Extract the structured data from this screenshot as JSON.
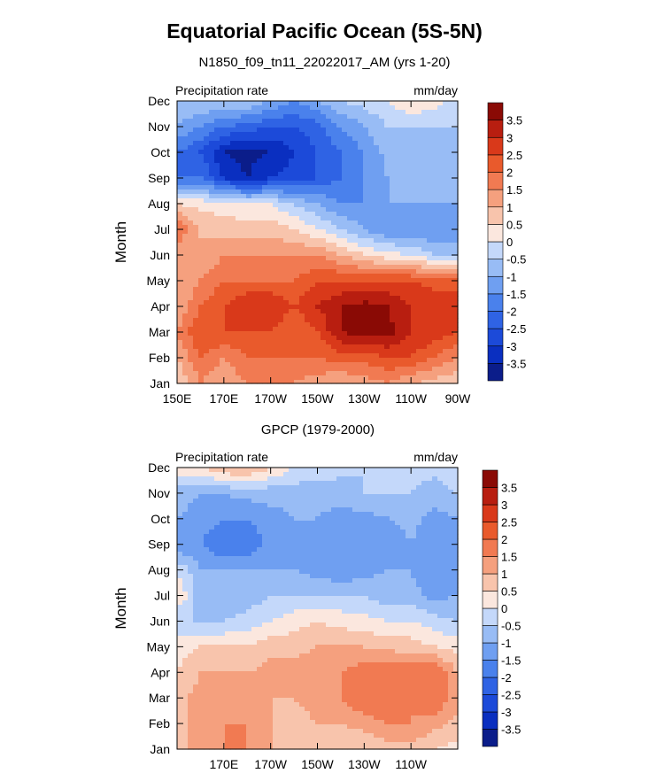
{
  "title": "Equatorial Pacific Ocean (5S-5N)",
  "subtitle": "N1850_f09_tn11_22022017_AM (yrs 1-20)",
  "colors": {
    "levels": [
      "#0b1d8a",
      "#0a2fc0",
      "#1c4ad9",
      "#2f63e4",
      "#4a81ec",
      "#6f9ff1",
      "#98bcf5",
      "#c4d8fa",
      "#fbe7de",
      "#f8c4ac",
      "#f5a07e",
      "#f17a52",
      "#e95a2c",
      "#d9391a",
      "#b81e10",
      "#8a0a05"
    ]
  },
  "chart_data": [
    {
      "type": "heatmap",
      "name_left": "Precipitation rate",
      "units": "mm/day",
      "ylabel": "Month",
      "months": [
        "Jan",
        "Feb",
        "Mar",
        "Apr",
        "May",
        "Jun",
        "Jul",
        "Aug",
        "Sep",
        "Oct",
        "Nov",
        "Dec"
      ],
      "xlim": [
        150,
        270
      ],
      "x_ticks": [
        {
          "v": 150,
          "label": "150E"
        },
        {
          "v": 170,
          "label": "170E"
        },
        {
          "v": 190,
          "label": "170W"
        },
        {
          "v": 210,
          "label": "150W"
        },
        {
          "v": 230,
          "label": "130W"
        },
        {
          "v": 250,
          "label": "110W"
        },
        {
          "v": 270,
          "label": "90W"
        }
      ],
      "colorbar_labels": [
        "-3.5",
        "-3",
        "-2.5",
        "-2",
        "-1.5",
        "-1",
        "-0.5",
        "0",
        "0.5",
        "1",
        "1.5",
        "2",
        "2.5",
        "3",
        "3.5"
      ],
      "x": [
        150,
        160,
        170,
        180,
        190,
        200,
        210,
        220,
        230,
        240,
        250,
        260,
        270
      ],
      "z": [
        [
          0.5,
          1.5,
          1.0,
          1.5,
          1.5,
          1.5,
          1.2,
          1.0,
          1.2,
          1.5,
          1.0,
          0.8,
          0.5
        ],
        [
          1.0,
          2.0,
          1.5,
          2.0,
          2.0,
          2.0,
          2.0,
          2.2,
          2.2,
          2.5,
          2.5,
          2.0,
          1.5
        ],
        [
          1.5,
          2.5,
          2.5,
          2.5,
          2.5,
          2.0,
          2.5,
          3.5,
          3.7,
          3.7,
          3.0,
          2.8,
          2.5
        ],
        [
          1.0,
          2.0,
          2.5,
          3.0,
          3.0,
          2.5,
          3.0,
          3.5,
          3.7,
          3.5,
          3.0,
          2.8,
          2.5
        ],
        [
          1.0,
          1.5,
          2.0,
          2.0,
          2.0,
          2.0,
          2.5,
          2.5,
          2.5,
          2.5,
          2.5,
          2.3,
          2.5
        ],
        [
          1.0,
          1.0,
          1.5,
          1.5,
          1.5,
          1.5,
          1.5,
          1.0,
          0.5,
          0.2,
          0.0,
          -0.5,
          -0.5
        ],
        [
          2.0,
          1.0,
          0.8,
          0.8,
          0.8,
          0.5,
          0.0,
          -0.5,
          -1.0,
          -1.5,
          -1.5,
          -1.5,
          -1.5
        ],
        [
          0.5,
          0.3,
          0.2,
          0.0,
          0.0,
          -0.5,
          -1.0,
          -1.5,
          -1.5,
          -1.0,
          -1.0,
          -1.0,
          -1.0
        ],
        [
          -2.0,
          -2.0,
          -3.0,
          -3.5,
          -3.0,
          -2.8,
          -2.5,
          -2.0,
          -1.5,
          -1.0,
          -1.0,
          -1.0,
          -1.0
        ],
        [
          -2.0,
          -2.5,
          -3.5,
          -3.7,
          -3.5,
          -3.0,
          -2.5,
          -2.0,
          -1.5,
          -0.8,
          -0.5,
          -0.8,
          -1.0
        ],
        [
          -1.0,
          -1.5,
          -2.0,
          -2.2,
          -2.5,
          -2.5,
          -2.2,
          -1.5,
          -1.0,
          -0.5,
          -0.5,
          -0.5,
          -0.5
        ],
        [
          -0.5,
          -0.5,
          -0.5,
          -0.5,
          -1.0,
          -1.5,
          -1.0,
          -0.5,
          -0.3,
          0.0,
          0.5,
          0.2,
          -0.2
        ]
      ]
    },
    {
      "type": "heatmap",
      "title": "GPCP (1979-2000)",
      "name_left": "Precipitation rate",
      "units": "mm/day",
      "ylabel": "Month",
      "months": [
        "Jan",
        "Feb",
        "Mar",
        "Apr",
        "May",
        "Jun",
        "Jul",
        "Aug",
        "Sep",
        "Oct",
        "Nov",
        "Dec"
      ],
      "xlim": [
        150,
        270
      ],
      "x_ticks": [
        {
          "v": 170,
          "label": "170E"
        },
        {
          "v": 190,
          "label": "170W"
        },
        {
          "v": 210,
          "label": "150W"
        },
        {
          "v": 230,
          "label": "130W"
        },
        {
          "v": 250,
          "label": "110W"
        }
      ],
      "colorbar_labels": [
        "-3.5",
        "-3",
        "-2.5",
        "-2",
        "-1.5",
        "-1",
        "-0.5",
        "0",
        "0.5",
        "1",
        "1.5",
        "2",
        "2.5",
        "3",
        "3.5"
      ],
      "x": [
        150,
        160,
        170,
        180,
        190,
        200,
        210,
        220,
        230,
        240,
        250,
        260,
        270
      ],
      "z": [
        [
          0.8,
          1.2,
          1.5,
          1.5,
          1.0,
          0.5,
          0.5,
          0.5,
          0.5,
          0.8,
          0.8,
          0.5,
          0.3
        ],
        [
          0.8,
          1.2,
          1.5,
          1.5,
          1.0,
          0.8,
          1.0,
          1.0,
          1.2,
          1.5,
          1.5,
          1.2,
          0.8
        ],
        [
          0.8,
          1.2,
          1.5,
          1.2,
          1.0,
          1.0,
          1.2,
          1.5,
          2.0,
          2.0,
          1.5,
          2.0,
          1.2
        ],
        [
          0.5,
          1.0,
          1.0,
          1.0,
          1.2,
          1.2,
          1.5,
          1.5,
          1.8,
          2.0,
          1.8,
          2.0,
          1.0
        ],
        [
          0.3,
          0.5,
          0.5,
          0.5,
          0.8,
          0.8,
          1.0,
          1.0,
          1.0,
          0.8,
          0.8,
          0.5,
          0.3
        ],
        [
          -0.5,
          -0.5,
          -0.5,
          -0.3,
          0.0,
          0.3,
          0.5,
          0.3,
          0.2,
          0.0,
          0.0,
          -0.3,
          -0.5
        ],
        [
          0.5,
          -0.8,
          -1.0,
          -0.8,
          -0.5,
          -0.5,
          -0.5,
          -0.5,
          -0.5,
          -0.8,
          -0.8,
          -1.2,
          -1.0
        ],
        [
          0.0,
          -1.0,
          -1.0,
          -1.0,
          -1.0,
          -1.0,
          -1.2,
          -1.5,
          -1.2,
          -1.0,
          -1.0,
          -1.5,
          -1.2
        ],
        [
          -1.5,
          -1.5,
          -2.0,
          -2.0,
          -1.2,
          -1.0,
          -1.2,
          -1.5,
          -1.5,
          -1.5,
          -1.0,
          -1.5,
          -1.2
        ],
        [
          -1.0,
          -1.2,
          -1.5,
          -1.5,
          -1.2,
          -1.0,
          -1.0,
          -1.2,
          -1.2,
          -1.0,
          -0.8,
          -1.2,
          -1.0
        ],
        [
          -0.8,
          -1.0,
          -1.0,
          -0.8,
          -0.8,
          -0.8,
          -0.8,
          -0.8,
          -0.5,
          -0.5,
          -0.5,
          -0.8,
          -0.5
        ],
        [
          0.3,
          0.5,
          1.0,
          1.0,
          0.5,
          0.0,
          -0.2,
          -0.3,
          -0.5,
          -0.5,
          -0.3,
          -0.3,
          0.0
        ]
      ]
    }
  ]
}
